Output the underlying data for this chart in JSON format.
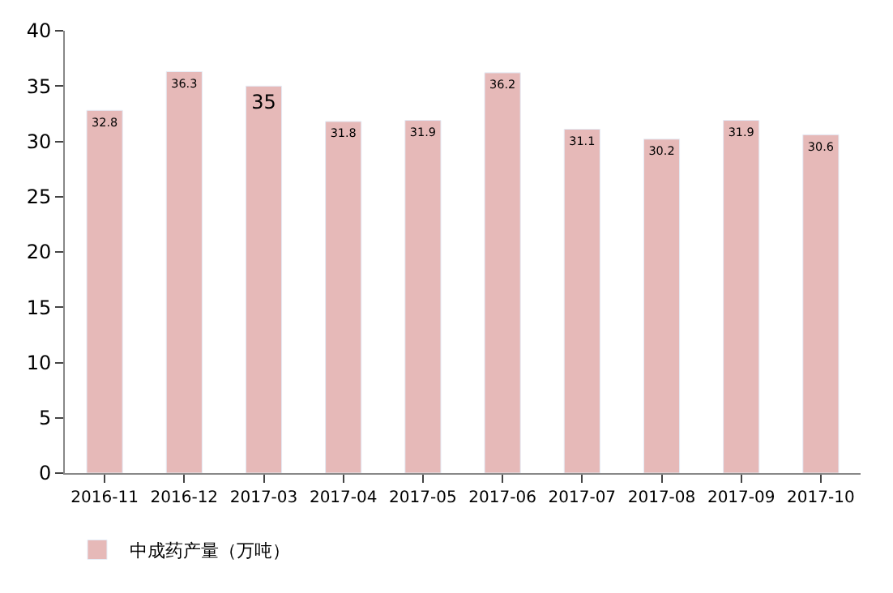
{
  "chart_data": {
    "type": "bar",
    "categories": [
      "2016-11",
      "2016-12",
      "2017-03",
      "2017-04",
      "2017-05",
      "2017-06",
      "2017-07",
      "2017-08",
      "2017-09",
      "2017-10"
    ],
    "series": [
      {
        "name": "中成药产量（万吨）",
        "color": "#e6b9b8",
        "values": [
          32.8,
          36.3,
          35,
          31.8,
          31.9,
          36.2,
          31.1,
          30.2,
          31.9,
          30.6
        ]
      }
    ],
    "ylim": [
      0,
      40
    ],
    "yticks": [
      0,
      5,
      10,
      15,
      20,
      25,
      30,
      35,
      40
    ],
    "data_labels": true,
    "grid": false,
    "legend": "bottom left"
  }
}
